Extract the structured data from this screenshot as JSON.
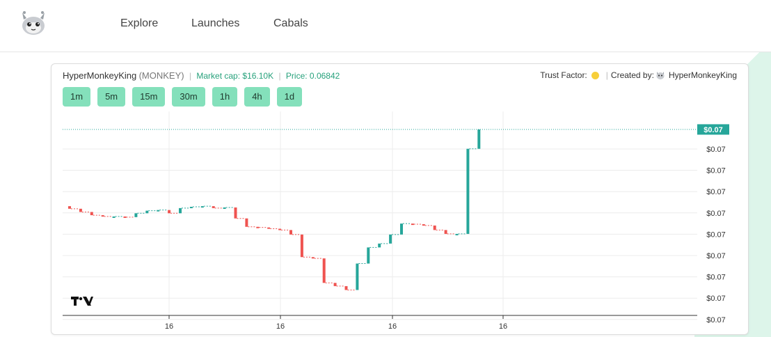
{
  "nav": {
    "items": [
      {
        "label": "Explore"
      },
      {
        "label": "Launches"
      },
      {
        "label": "Cabals"
      }
    ]
  },
  "token": {
    "name": "HyperMonkeyKing",
    "ticker": "(MONKEY)",
    "market_cap_label": "Market cap: $16.10K",
    "price_label": "Price: 0.06842",
    "trust_label": "Trust Factor:",
    "trust_color": "#f7cf3a",
    "created_by_label": "Created by:",
    "creator": "HyperMonkeyKing"
  },
  "timeframes": [
    "1m",
    "5m",
    "15m",
    "30m",
    "1h",
    "4h",
    "1d"
  ],
  "chart_data": {
    "type": "candlestick",
    "price_tags": [
      "$0.07",
      "$0.07",
      "$0.07",
      "$0.07",
      "$0.07",
      "$0.07",
      "$0.07",
      "$0.07",
      "$0.07"
    ],
    "current_price_tag": "$0.07",
    "x_ticks": [
      "16",
      "16",
      "16",
      "16"
    ],
    "up_color": "#26a69a",
    "down_color": "#ef5350",
    "grid": true,
    "candles_relative": [
      {
        "o": 40.0,
        "c": 39.6
      },
      {
        "o": 39.6,
        "c": 39.1
      },
      {
        "o": 39.1,
        "c": 38.6
      },
      {
        "o": 38.6,
        "c": 38.4
      },
      {
        "o": 38.4,
        "c": 38.4
      },
      {
        "o": 38.4,
        "c": 38.3
      },
      {
        "o": 38.3,
        "c": 38.9
      },
      {
        "o": 38.9,
        "c": 39.3
      },
      {
        "o": 39.3,
        "c": 39.4
      },
      {
        "o": 39.4,
        "c": 38.9
      },
      {
        "o": 38.9,
        "c": 39.7
      },
      {
        "o": 39.7,
        "c": 39.9
      },
      {
        "o": 39.9,
        "c": 40.0
      },
      {
        "o": 40.0,
        "c": 39.7
      },
      {
        "o": 39.7,
        "c": 39.8
      },
      {
        "o": 39.8,
        "c": 38.1
      },
      {
        "o": 38.1,
        "c": 36.8
      },
      {
        "o": 36.8,
        "c": 36.7
      },
      {
        "o": 36.7,
        "c": 36.5
      },
      {
        "o": 36.5,
        "c": 36.3
      },
      {
        "o": 36.3,
        "c": 35.6
      },
      {
        "o": 35.6,
        "c": 32.1
      },
      {
        "o": 32.1,
        "c": 31.9
      },
      {
        "o": 31.9,
        "c": 28.1
      },
      {
        "o": 28.1,
        "c": 27.6
      },
      {
        "o": 27.6,
        "c": 27.0
      },
      {
        "o": 27.0,
        "c": 31.1
      },
      {
        "o": 31.1,
        "c": 33.6
      },
      {
        "o": 33.6,
        "c": 34.2
      },
      {
        "o": 34.2,
        "c": 35.6
      },
      {
        "o": 35.6,
        "c": 37.3
      },
      {
        "o": 37.3,
        "c": 37.2
      },
      {
        "o": 37.2,
        "c": 37.0
      },
      {
        "o": 37.0,
        "c": 36.3
      },
      {
        "o": 36.3,
        "c": 35.7
      },
      {
        "o": 35.7,
        "c": 35.7
      },
      {
        "o": 35.7,
        "c": 48.9
      },
      {
        "o": 48.9,
        "c": 51.9
      }
    ]
  }
}
